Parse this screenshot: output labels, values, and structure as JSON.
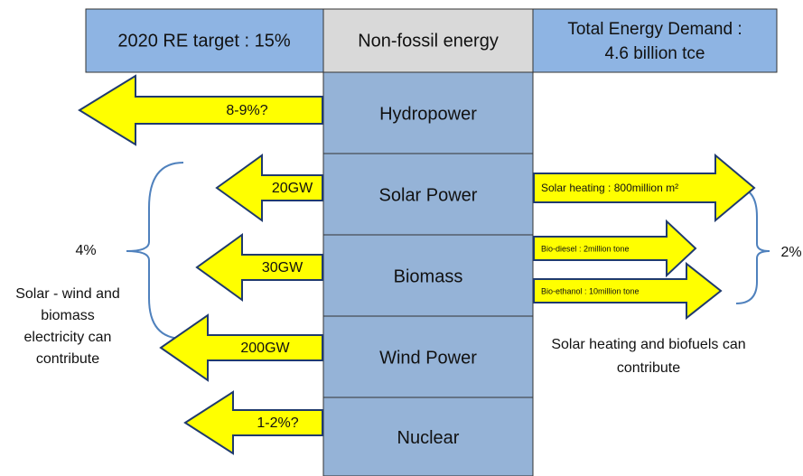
{
  "header": {
    "left": "2020 RE target : 15%",
    "middle": "Non-fossil energy",
    "right": [
      "Total Energy Demand :",
      "4.6 billion tce"
    ]
  },
  "sources": [
    "Hydropower",
    "Solar Power",
    "Biomass",
    "Wind Power",
    "Nuclear"
  ],
  "left_arrows": [
    "8-9%?",
    "20GW",
    "30GW",
    "200GW",
    "1-2%?"
  ],
  "right_arrows": [
    "Solar heating : 800million  m²",
    "Bio-diesel : 2million tone",
    "Bio-ethanol : 10million tone"
  ],
  "left_note": {
    "share": "4%",
    "lines": [
      "Solar - wind and",
      "biomass",
      "electricity can",
      "contribute"
    ]
  },
  "right_note": {
    "share": "2%",
    "lines": [
      "Solar heating and biofuels can",
      "contribute"
    ]
  }
}
